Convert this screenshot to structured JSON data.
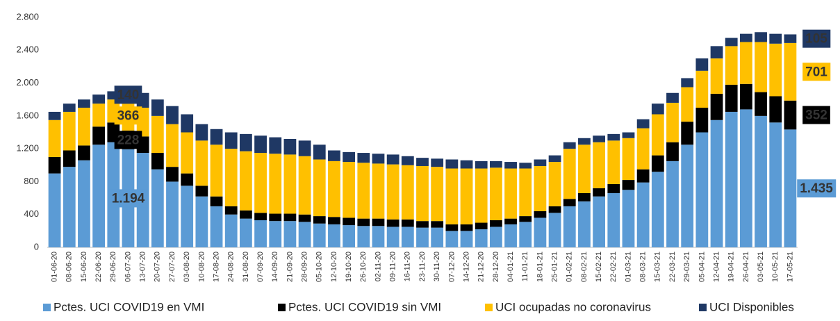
{
  "chart_data": {
    "type": "stacked-bar",
    "categories": [
      "01-06-20",
      "08-06-20",
      "15-06-20",
      "22-06-20",
      "29-06-20",
      "06-07-20",
      "13-07-20",
      "20-07-20",
      "27-07-20",
      "03-08-20",
      "10-08-20",
      "17-08-20",
      "24-08-20",
      "31-08-20",
      "07-09-20",
      "14-09-20",
      "21-09-20",
      "28-09-20",
      "05-10-20",
      "12-10-20",
      "19-10-20",
      "26-10-20",
      "02-11-20",
      "09-11-20",
      "16-11-20",
      "23-11-20",
      "30-11-20",
      "07-12-20",
      "14-12-20",
      "21-12-20",
      "28-12-20",
      "04-01-21",
      "11-01-21",
      "18-01-21",
      "25-01-21",
      "01-02-21",
      "08-02-21",
      "15-02-21",
      "22-02-21",
      "01-03-21",
      "08-03-21",
      "15-03-21",
      "22-03-21",
      "29-03-21",
      "05-04-21",
      "12-04-21",
      "19-04-21",
      "26-04-21",
      "03-05-21",
      "10-05-21",
      "17-05-21"
    ],
    "series": [
      {
        "name": "Pctes. UCI COVID19 en VMI",
        "color": "#5b9bd5",
        "values": [
          900,
          980,
          1060,
          1250,
          1280,
          1194,
          1150,
          950,
          800,
          750,
          620,
          500,
          400,
          350,
          330,
          320,
          320,
          310,
          290,
          280,
          270,
          260,
          260,
          250,
          250,
          240,
          240,
          200,
          200,
          220,
          250,
          280,
          310,
          360,
          420,
          500,
          560,
          620,
          660,
          700,
          790,
          920,
          1050,
          1250,
          1400,
          1550,
          1650,
          1680,
          1600,
          1520,
          1435
        ],
        "value_labels": [
          null,
          null,
          null,
          null,
          null,
          "1.194",
          null,
          null,
          null,
          null,
          null,
          null,
          null,
          null,
          null,
          null,
          null,
          null,
          null,
          null,
          null,
          null,
          null,
          null,
          null,
          null,
          null,
          null,
          null,
          null,
          null,
          null,
          null,
          null,
          null,
          null,
          null,
          null,
          null,
          null,
          null,
          null,
          null,
          null,
          null,
          null,
          null,
          null,
          null,
          null,
          "1.435"
        ]
      },
      {
        "name": "Pctes. UCI COVID19 sin VMI",
        "color": "#000000",
        "values": [
          200,
          200,
          180,
          220,
          240,
          228,
          200,
          200,
          180,
          150,
          130,
          120,
          100,
          100,
          90,
          90,
          90,
          90,
          90,
          90,
          90,
          90,
          90,
          90,
          90,
          80,
          80,
          80,
          80,
          80,
          80,
          70,
          70,
          80,
          80,
          90,
          100,
          100,
          110,
          120,
          160,
          200,
          230,
          280,
          300,
          320,
          330,
          310,
          290,
          320,
          352
        ],
        "value_labels": [
          null,
          null,
          null,
          null,
          null,
          "228",
          null,
          null,
          null,
          null,
          null,
          null,
          null,
          null,
          null,
          null,
          null,
          null,
          null,
          null,
          null,
          null,
          null,
          null,
          null,
          null,
          null,
          null,
          null,
          null,
          null,
          null,
          null,
          null,
          null,
          null,
          null,
          null,
          null,
          null,
          null,
          null,
          null,
          null,
          null,
          null,
          null,
          null,
          null,
          null,
          "352"
        ]
      },
      {
        "name": "UCI ocupadas no coronavirus",
        "color": "#ffc000",
        "values": [
          450,
          470,
          460,
          280,
          280,
          366,
          350,
          450,
          520,
          500,
          550,
          630,
          700,
          720,
          730,
          730,
          720,
          710,
          690,
          680,
          680,
          680,
          670,
          670,
          660,
          670,
          660,
          680,
          680,
          660,
          640,
          610,
          580,
          550,
          540,
          610,
          590,
          560,
          530,
          510,
          500,
          500,
          480,
          420,
          450,
          430,
          470,
          510,
          610,
          640,
          701
        ],
        "value_labels": [
          null,
          null,
          null,
          null,
          null,
          "366",
          null,
          null,
          null,
          null,
          null,
          null,
          null,
          null,
          null,
          null,
          null,
          null,
          null,
          null,
          null,
          null,
          null,
          null,
          null,
          null,
          null,
          null,
          null,
          null,
          null,
          null,
          null,
          null,
          null,
          null,
          null,
          null,
          null,
          null,
          null,
          null,
          null,
          null,
          null,
          null,
          null,
          null,
          null,
          null,
          "701"
        ]
      },
      {
        "name": "UCI Disponibles",
        "color": "#1f3864",
        "values": [
          100,
          100,
          100,
          110,
          100,
          140,
          180,
          200,
          220,
          220,
          200,
          190,
          200,
          210,
          210,
          200,
          190,
          190,
          180,
          130,
          120,
          120,
          120,
          120,
          110,
          100,
          100,
          110,
          100,
          90,
          80,
          80,
          70,
          80,
          80,
          80,
          80,
          80,
          80,
          70,
          110,
          130,
          120,
          110,
          150,
          150,
          100,
          100,
          120,
          120,
          105
        ],
        "value_labels": [
          null,
          null,
          null,
          null,
          null,
          "140",
          null,
          null,
          null,
          null,
          null,
          null,
          null,
          null,
          null,
          null,
          null,
          null,
          null,
          null,
          null,
          null,
          null,
          null,
          null,
          null,
          null,
          null,
          null,
          null,
          null,
          null,
          null,
          null,
          null,
          null,
          null,
          null,
          null,
          null,
          null,
          null,
          null,
          null,
          null,
          null,
          null,
          null,
          null,
          null,
          "105"
        ]
      }
    ],
    "ylim": [
      0,
      2800
    ],
    "yticks": [
      0,
      400,
      800,
      {
        "value": 1200,
        "label": "1.200"
      },
      {
        "value": 1600,
        "label": "1.600"
      },
      {
        "value": 2000,
        "label": "2.000"
      },
      {
        "value": 2400,
        "label": "2.400"
      },
      {
        "value": 2800,
        "label": "2.800"
      }
    ],
    "grid": false
  }
}
